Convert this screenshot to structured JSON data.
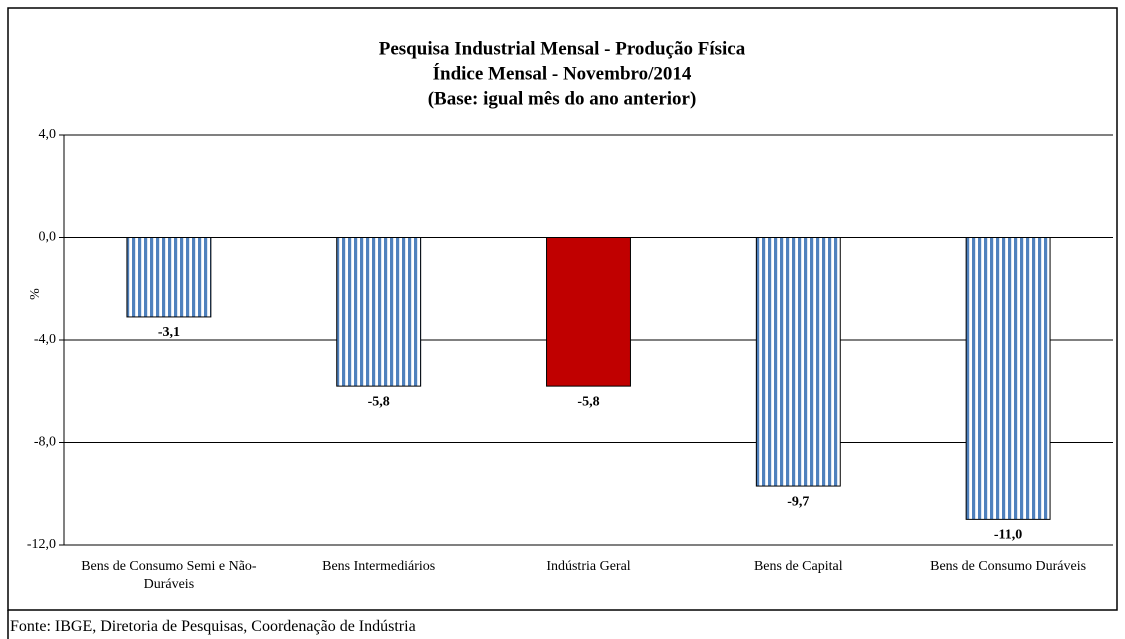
{
  "chart_data": {
    "type": "bar",
    "title": [
      "Pesquisa Industrial Mensal - Produção Física",
      "Índice Mensal - Novembro/2014",
      "(Base: igual mês do ano anterior)"
    ],
    "y_label": "%",
    "categories": [
      "Bens de Consumo Semi e Não-Duráveis",
      "Bens Intermediários",
      "Indústria Geral",
      "Bens de Capital",
      "Bens de Consumo Duráveis"
    ],
    "values": [
      -3.1,
      -5.8,
      -5.8,
      -9.7,
      -11.0
    ],
    "value_labels": [
      "-3,1",
      "-5,8",
      "-5,8",
      "-9,7",
      "-11,0"
    ],
    "colors": [
      "#4f81bd",
      "#4f81bd",
      "#c00000",
      "#4f81bd",
      "#4f81bd"
    ],
    "striped": [
      true,
      true,
      false,
      true,
      true
    ],
    "ylim": [
      -12,
      4
    ],
    "yticks": [
      {
        "value": -12,
        "label": "-12,0"
      },
      {
        "value": -8,
        "label": "-8,0"
      },
      {
        "value": -4,
        "label": "-4,0"
      },
      {
        "value": 0,
        "label": "0,0"
      },
      {
        "value": 4,
        "label": "4,0"
      }
    ],
    "grid": true
  },
  "footnote": "Fonte: IBGE, Diretoria de Pesquisas, Coordenação de Indústria"
}
